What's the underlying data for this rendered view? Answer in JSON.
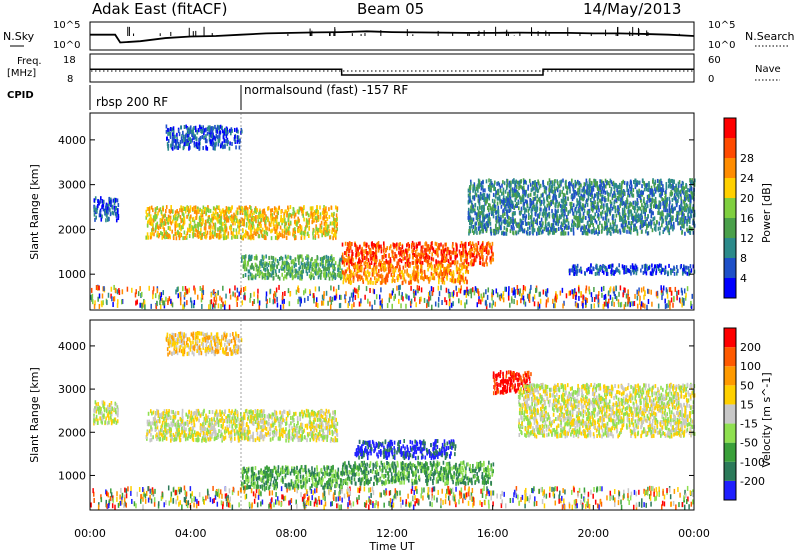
{
  "header": {
    "site": "Adak East (fitACF)",
    "beam": "Beam 05",
    "date": "14/May/2013"
  },
  "noise_panel": {
    "left_label": "N.Sky",
    "right_label": "N.Search",
    "left_ticks": [
      "10^5",
      "10^0"
    ],
    "right_ticks": [
      "10^5",
      "10^0"
    ]
  },
  "freq_panel": {
    "left_label_1": "Freq.",
    "left_label_2": "[MHz]",
    "right_label": "Nave",
    "left_ticks": [
      "18",
      "8"
    ],
    "right_ticks": [
      "60",
      "0"
    ]
  },
  "cpid": {
    "label": "CPID",
    "segments": [
      {
        "text": "rbsp 200 RF",
        "start_hour": 0
      },
      {
        "text": "normalsound (fast) -157 RF",
        "start_hour": 6
      }
    ]
  },
  "power_colorbar": {
    "label": "Power [dB]",
    "ticks": [
      "4",
      "8",
      "12",
      "16",
      "20",
      "24",
      "28"
    ]
  },
  "velocity_colorbar": {
    "label": "Velocity [m s^-1]",
    "ticks": [
      "200",
      "100",
      "50",
      "15",
      "-15",
      "-50",
      "-100",
      "-200"
    ]
  },
  "colors": {
    "power": [
      "#0000ff",
      "#1e50c8",
      "#2c8a8a",
      "#4aa04a",
      "#7fcf3f",
      "#ffd000",
      "#ff8c00",
      "#ff4a00",
      "#ff0000"
    ],
    "velocity": [
      "#2020ff",
      "#2c7a5a",
      "#3aa03a",
      "#8fe050",
      "#c8c8c8",
      "#ffd000",
      "#ff9a00",
      "#ff5a00",
      "#ff0000"
    ]
  },
  "chart_data": [
    {
      "type": "line",
      "name": "noise",
      "x_unit": "hours UT",
      "x": [
        0,
        1,
        1.2,
        2,
        3,
        4,
        5,
        6,
        7,
        8,
        9,
        10,
        11,
        12,
        13,
        14,
        15,
        16,
        17,
        18,
        19,
        20,
        21,
        22,
        23,
        24
      ],
      "series": [
        {
          "values": [
            0.55,
            0.55,
            0.25,
            0.3,
            0.42,
            0.48,
            0.5,
            0.55,
            0.6,
            0.62,
            0.64,
            0.65,
            0.68,
            0.65,
            0.64,
            0.63,
            0.62,
            0.62,
            0.63,
            0.62,
            0.62,
            0.6,
            0.6,
            0.58,
            0.55,
            0.5
          ]
        }
      ]
    },
    {
      "type": "line",
      "name": "frequency",
      "x_unit": "hours UT",
      "xlim": [
        0,
        24
      ],
      "series": [
        {
          "x": [
            0,
            10,
            10,
            18,
            18,
            24
          ],
          "values": [
            12.5,
            12.5,
            10.3,
            10.3,
            12.5,
            12.5
          ]
        }
      ]
    },
    {
      "type": "heatmap",
      "name": "power",
      "xlabel": "Time UT",
      "ylabel": "Slant Range [km]",
      "xlim": [
        0,
        24
      ],
      "ylim": [
        200,
        4600
      ],
      "x_ticks": [
        "00:00",
        "04:00",
        "08:00",
        "12:00",
        "16:00",
        "20:00",
        "00:00"
      ],
      "y_ticks": [
        1000,
        2000,
        3000,
        4000
      ],
      "regions": [
        {
          "t0": 0.1,
          "t1": 1.1,
          "r0": 2200,
          "r1": 2700,
          "level": 1
        },
        {
          "t0": 2.2,
          "t1": 9.8,
          "r0": 1800,
          "r1": 2500,
          "level": 5
        },
        {
          "t0": 3.0,
          "t1": 6.0,
          "r0": 3800,
          "r1": 4300,
          "level": 1
        },
        {
          "t0": 6.0,
          "t1": 10.0,
          "r0": 900,
          "r1": 1400,
          "level": 3
        },
        {
          "t0": 10.0,
          "t1": 16.0,
          "r0": 1200,
          "r1": 1700,
          "level": 7
        },
        {
          "t0": 10.0,
          "t1": 15.0,
          "r0": 800,
          "r1": 1200,
          "level": 6
        },
        {
          "t0": 15.0,
          "t1": 24.0,
          "r0": 1900,
          "r1": 3100,
          "level": 2
        },
        {
          "t0": 19.0,
          "t1": 24.0,
          "r0": 1000,
          "r1": 1200,
          "level": 1
        }
      ]
    },
    {
      "type": "heatmap",
      "name": "velocity",
      "xlabel": "Time UT",
      "ylabel": "Slant Range [km]",
      "xlim": [
        0,
        24
      ],
      "ylim": [
        200,
        4600
      ],
      "x_ticks": [
        "00:00",
        "04:00",
        "08:00",
        "12:00",
        "16:00",
        "20:00",
        "00:00"
      ],
      "y_ticks": [
        1000,
        2000,
        3000,
        4000
      ],
      "regions": [
        {
          "t0": 0.1,
          "t1": 1.1,
          "r0": 2200,
          "r1": 2700,
          "level": 4
        },
        {
          "t0": 2.2,
          "t1": 9.8,
          "r0": 1800,
          "r1": 2500,
          "level": 4
        },
        {
          "t0": 3.0,
          "t1": 6.0,
          "r0": 3800,
          "r1": 4300,
          "level": 5
        },
        {
          "t0": 6.0,
          "t1": 10.0,
          "r0": 700,
          "r1": 1200,
          "level": 2
        },
        {
          "t0": 10.5,
          "t1": 14.5,
          "r0": 1400,
          "r1": 1800,
          "level": 0
        },
        {
          "t0": 10.0,
          "t1": 16.0,
          "r0": 800,
          "r1": 1300,
          "level": 2
        },
        {
          "t0": 16.0,
          "t1": 17.5,
          "r0": 2900,
          "r1": 3400,
          "level": 8
        },
        {
          "t0": 17.0,
          "t1": 24.0,
          "r0": 1900,
          "r1": 3100,
          "level": 4
        }
      ]
    }
  ]
}
